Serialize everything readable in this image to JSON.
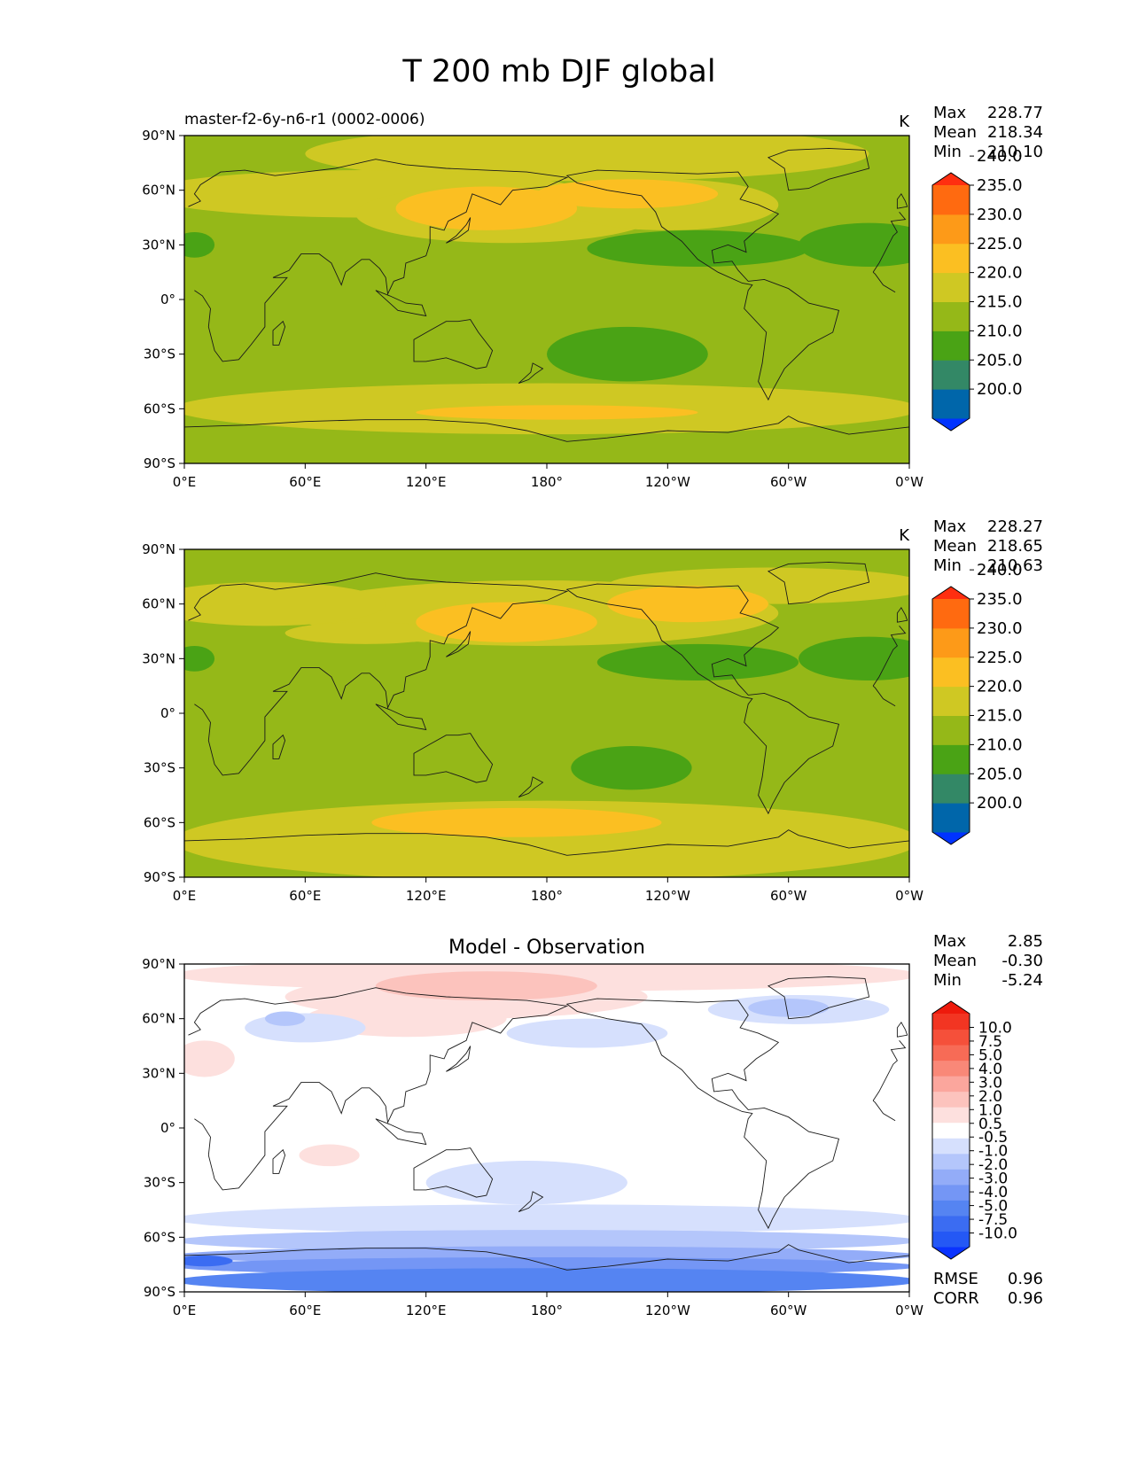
{
  "figure": {
    "title": "T 200 mb DJF global"
  },
  "colors": {
    "test_levels": [
      "#0033ff",
      "#0066aa",
      "#338866",
      "#4aa315",
      "#95b818",
      "#cfc823",
      "#fbbf22",
      "#fd9a18",
      "#ff6a10",
      "#ff2e10"
    ],
    "diff_levels": [
      "#0a33ff",
      "#2458f5",
      "#3b6cf2",
      "#5584f2",
      "#7496f5",
      "#93acf8",
      "#b4c6fb",
      "#d6e0fd",
      "#ffffff",
      "#ffffff",
      "#fde0de",
      "#fcc3bd",
      "#fba69d",
      "#f98878",
      "#f76b56",
      "#f5503a",
      "#f23522",
      "#ee1a0c"
    ],
    "coast": "#1a1a1a"
  },
  "chart_data": [
    {
      "type": "heatmap",
      "name": "test",
      "title": "master-f2-6y-n6-r1 (0002-0006)",
      "units": "K",
      "stats": [
        {
          "label": "Max",
          "value": "228.77"
        },
        {
          "label": "Mean",
          "value": "218.34"
        },
        {
          "label": "Min",
          "value": "210.10"
        }
      ],
      "colorbar_ticks": [
        "200.0",
        "205.0",
        "210.0",
        "215.0",
        "220.0",
        "225.0",
        "230.0",
        "235.0",
        "240.0"
      ],
      "xticks": [
        "0°E",
        "60°E",
        "120°E",
        "180°",
        "120°W",
        "60°W",
        "0°W"
      ],
      "yticks": [
        "90°S",
        "60°S",
        "30°S",
        "0°",
        "30°N",
        "60°N",
        "90°N"
      ],
      "xlim": [
        0,
        360
      ],
      "ylim": [
        -90,
        90
      ],
      "background_value": 217.5,
      "features": [
        {
          "lon": 200,
          "lat": 80,
          "rx": 140,
          "ry": 15,
          "value": 222.5
        },
        {
          "lon": 90,
          "lat": 58,
          "rx": 110,
          "ry": 13,
          "value": 222.5
        },
        {
          "lon": 160,
          "lat": 47,
          "rx": 75,
          "ry": 16,
          "value": 222.5
        },
        {
          "lon": 240,
          "lat": 52,
          "rx": 55,
          "ry": 14,
          "value": 222.5
        },
        {
          "lon": 150,
          "lat": 50,
          "rx": 45,
          "ry": 12,
          "value": 227.5
        },
        {
          "lon": 220,
          "lat": 58,
          "rx": 45,
          "ry": 8,
          "value": 227.5
        },
        {
          "lon": 255,
          "lat": 28,
          "rx": 55,
          "ry": 10,
          "value": 212.5
        },
        {
          "lon": 340,
          "lat": 30,
          "rx": 35,
          "ry": 12,
          "value": 212.5
        },
        {
          "lon": 5,
          "lat": 30,
          "rx": 10,
          "ry": 7,
          "value": 212.5
        },
        {
          "lon": 220,
          "lat": -30,
          "rx": 40,
          "ry": 15,
          "value": 212.5
        },
        {
          "lon": 180,
          "lat": -60,
          "rx": 185,
          "ry": 14,
          "value": 222.5
        },
        {
          "lon": 185,
          "lat": -62,
          "rx": 70,
          "ry": 4,
          "value": 227.5
        }
      ]
    },
    {
      "type": "heatmap",
      "name": "reference",
      "title": "",
      "units": "K",
      "stats": [
        {
          "label": "Max",
          "value": "228.27"
        },
        {
          "label": "Mean",
          "value": "218.65"
        },
        {
          "label": "Min",
          "value": "210.63"
        }
      ],
      "colorbar_ticks": [
        "200.0",
        "205.0",
        "210.0",
        "215.0",
        "220.0",
        "225.0",
        "230.0",
        "235.0",
        "240.0"
      ],
      "xticks": [
        "0°E",
        "60°E",
        "120°E",
        "180°",
        "120°W",
        "60°W",
        "0°W"
      ],
      "yticks": [
        "90°S",
        "60°S",
        "30°S",
        "0°",
        "30°N",
        "60°N",
        "90°N"
      ],
      "xlim": [
        0,
        360
      ],
      "ylim": [
        -90,
        90
      ],
      "background_value": 217.5,
      "features": [
        {
          "lon": 175,
          "lat": 55,
          "rx": 120,
          "ry": 18,
          "value": 222.5
        },
        {
          "lon": 40,
          "lat": 60,
          "rx": 60,
          "ry": 12,
          "value": 222.5
        },
        {
          "lon": 290,
          "lat": 70,
          "rx": 80,
          "ry": 10,
          "value": 222.5
        },
        {
          "lon": 90,
          "lat": 44,
          "rx": 40,
          "ry": 6,
          "value": 222.5
        },
        {
          "lon": 160,
          "lat": 50,
          "rx": 45,
          "ry": 11,
          "value": 227.5
        },
        {
          "lon": 250,
          "lat": 60,
          "rx": 40,
          "ry": 10,
          "value": 227.5
        },
        {
          "lon": 255,
          "lat": 28,
          "rx": 50,
          "ry": 10,
          "value": 212.5
        },
        {
          "lon": 340,
          "lat": 30,
          "rx": 35,
          "ry": 12,
          "value": 212.5
        },
        {
          "lon": 5,
          "lat": 30,
          "rx": 10,
          "ry": 7,
          "value": 212.5
        },
        {
          "lon": 222,
          "lat": -30,
          "rx": 30,
          "ry": 12,
          "value": 212.5
        },
        {
          "lon": 180,
          "lat": -70,
          "rx": 185,
          "ry": 22,
          "value": 222.5
        },
        {
          "lon": 165,
          "lat": -60,
          "rx": 72,
          "ry": 8,
          "value": 227.5
        }
      ]
    },
    {
      "type": "heatmap",
      "name": "difference",
      "title": "Model - Observation",
      "units": "",
      "stats": [
        {
          "label": "Max",
          "value": "2.85"
        },
        {
          "label": "Mean",
          "value": "-0.30"
        },
        {
          "label": "Min",
          "value": "-5.24"
        }
      ],
      "metrics": [
        {
          "label": "RMSE",
          "value": "0.96"
        },
        {
          "label": "CORR",
          "value": "0.96"
        }
      ],
      "colorbar_ticks": [
        "-10.0",
        "-7.5",
        "-5.0",
        "-4.0",
        "-3.0",
        "-2.0",
        "-1.0",
        "-0.5",
        "0.5",
        "1.0",
        "2.0",
        "3.0",
        "4.0",
        "5.0",
        "7.5",
        "10.0"
      ],
      "xticks": [
        "0°E",
        "60°E",
        "120°E",
        "180°",
        "120°W",
        "60°W",
        "0°W"
      ],
      "yticks": [
        "90°S",
        "60°S",
        "30°S",
        "0°",
        "30°N",
        "60°N",
        "90°N"
      ],
      "xlim": [
        0,
        360
      ],
      "ylim": [
        -90,
        90
      ],
      "background_value": 0,
      "features": [
        {
          "lon": 180,
          "lat": 84,
          "rx": 185,
          "ry": 9,
          "value": 0.75
        },
        {
          "lon": 140,
          "lat": 72,
          "rx": 90,
          "ry": 12,
          "value": 0.75
        },
        {
          "lon": 150,
          "lat": 78,
          "rx": 55,
          "ry": 8,
          "value": 1.5
        },
        {
          "lon": 110,
          "lat": 60,
          "rx": 50,
          "ry": 10,
          "value": 0.75
        },
        {
          "lon": 10,
          "lat": 38,
          "rx": 15,
          "ry": 10,
          "value": 0.75
        },
        {
          "lon": 72,
          "lat": -15,
          "rx": 15,
          "ry": 6,
          "value": 0.75
        },
        {
          "lon": 235,
          "lat": -62,
          "rx": 30,
          "ry": 7,
          "value": 0.75
        },
        {
          "lon": 240,
          "lat": -63,
          "rx": 10,
          "ry": 2,
          "value": 1.5
        },
        {
          "lon": 60,
          "lat": 55,
          "rx": 30,
          "ry": 8,
          "value": -0.75
        },
        {
          "lon": 50,
          "lat": 60,
          "rx": 10,
          "ry": 4,
          "value": -1.5
        },
        {
          "lon": 200,
          "lat": 52,
          "rx": 40,
          "ry": 8,
          "value": -0.75
        },
        {
          "lon": 305,
          "lat": 65,
          "rx": 45,
          "ry": 8,
          "value": -0.75
        },
        {
          "lon": 300,
          "lat": 66,
          "rx": 20,
          "ry": 5,
          "value": -1.5
        },
        {
          "lon": 170,
          "lat": -30,
          "rx": 50,
          "ry": 12,
          "value": -0.75
        },
        {
          "lon": 180,
          "lat": -50,
          "rx": 185,
          "ry": 8,
          "value": -0.75
        },
        {
          "lon": 180,
          "lat": -62,
          "rx": 185,
          "ry": 6,
          "value": -1.5
        },
        {
          "lon": 180,
          "lat": -70,
          "rx": 185,
          "ry": 5,
          "value": -2.5
        },
        {
          "lon": 180,
          "lat": -76,
          "rx": 185,
          "ry": 5,
          "value": -3.5
        },
        {
          "lon": 180,
          "lat": -84,
          "rx": 185,
          "ry": 7,
          "value": -4.5
        },
        {
          "lon": 10,
          "lat": -73,
          "rx": 14,
          "ry": 3,
          "value": -6.0
        }
      ]
    }
  ]
}
